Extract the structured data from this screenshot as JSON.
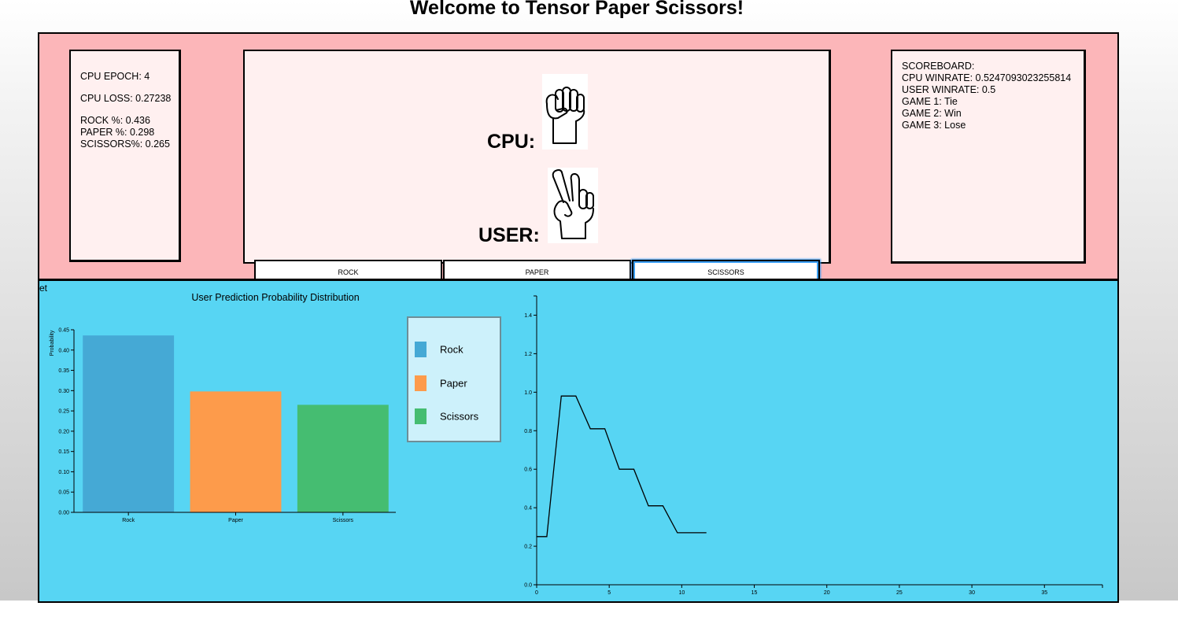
{
  "page": {
    "title": "Welcome to Tensor Paper Scissors!"
  },
  "stats": {
    "epoch": "CPU EPOCH: 4",
    "loss": "CPU LOSS: 0.27238",
    "rock": "ROCK %: 0.436",
    "paper": "PAPER %: 0.298",
    "scissors": "SCISSORS%: 0.265"
  },
  "game": {
    "cpu_label": "CPU:",
    "user_label": "USER:",
    "cpu_move": "rock",
    "user_move": "scissors"
  },
  "scoreboard": {
    "title": "SCOREBOARD:",
    "cpu_winrate": "CPU WINRATE: 0.5247093023255814",
    "user_winrate": "USER WINRATE: 0.5",
    "games": [
      "GAME 1: Tie",
      "GAME 2: Win",
      "GAME 3: Lose"
    ]
  },
  "buttons": {
    "rock": "ROCK",
    "paper": "PAPER",
    "scissors": "SCISSORS"
  },
  "stray_text": "et",
  "colors": {
    "top_panel": "#fcb6b9",
    "bottom_panel": "#57d5f3",
    "rock": "#45a9d5",
    "paper": "#fd9b4b",
    "scissors": "#45bd71"
  },
  "chart_data": [
    {
      "type": "bar",
      "title": "User Prediction Probability Distribution",
      "ylabel": "Probability",
      "categories": [
        "Rock",
        "Paper",
        "Scissors"
      ],
      "values": [
        0.436,
        0.298,
        0.265
      ],
      "ylim": [
        0,
        0.45
      ],
      "yticks": [
        "0.00",
        "0.05",
        "0.10",
        "0.15",
        "0.20",
        "0.25",
        "0.30",
        "0.35",
        "0.40",
        "0.45"
      ],
      "legend": [
        "Rock",
        "Paper",
        "Scissors"
      ],
      "legend_position": "right",
      "grid": false
    },
    {
      "type": "line",
      "x": [
        0,
        0.7,
        1.7,
        2.7,
        3.7,
        4.7,
        5.7,
        6.7,
        7.7,
        8.7,
        9.7,
        10.7,
        11.7
      ],
      "y": [
        0.25,
        0.25,
        0.98,
        0.98,
        0.81,
        0.81,
        0.6,
        0.6,
        0.41,
        0.41,
        0.27,
        0.27,
        0.27
      ],
      "xlim": [
        0,
        39
      ],
      "ylim": [
        0,
        1.5
      ],
      "xticks": [
        "0",
        "5",
        "10",
        "15",
        "20",
        "25",
        "30",
        "35"
      ],
      "yticks": [
        "0.0",
        "0.2",
        "0.4",
        "0.6",
        "0.8",
        "1.0",
        "1.2",
        "1.4"
      ],
      "grid": false
    }
  ]
}
